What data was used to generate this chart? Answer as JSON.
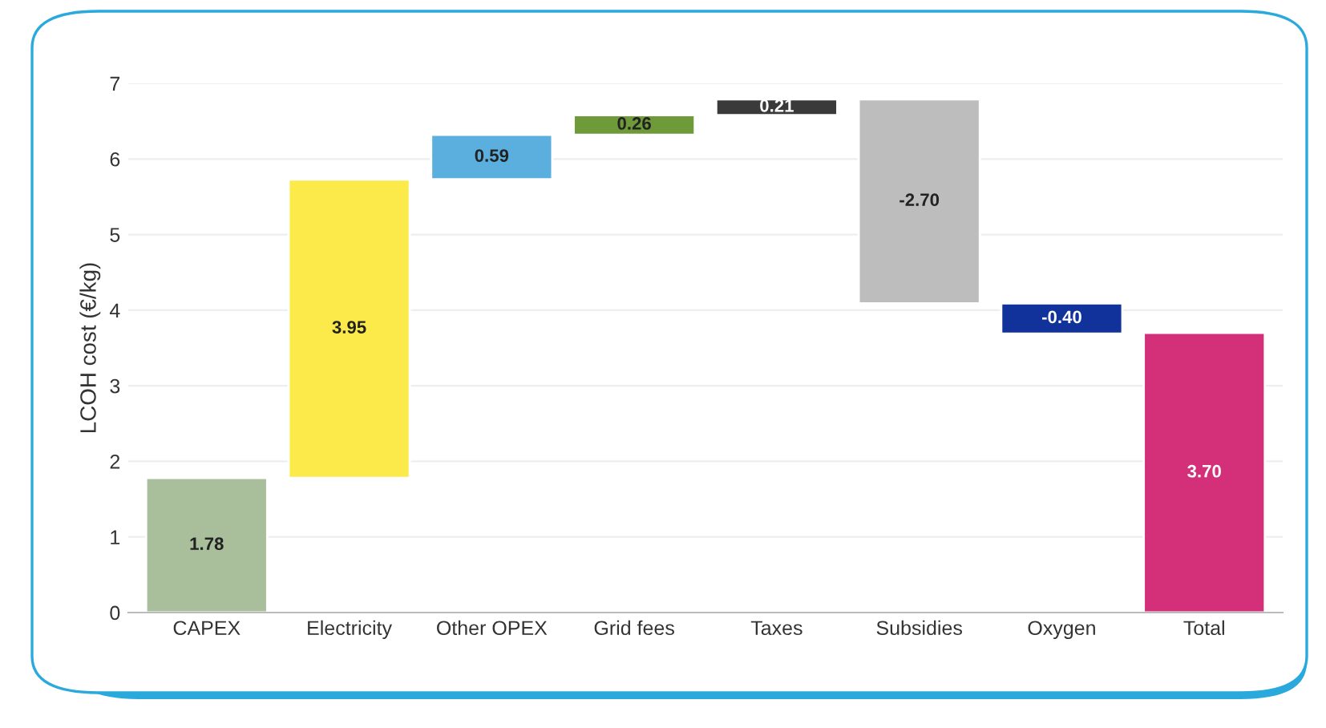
{
  "chart_data": {
    "type": "bar",
    "ylabel": "LCOH cost (€/kg)",
    "categories": [
      "CAPEX",
      "Electricity",
      "Other OPEX",
      "Grid fees",
      "Taxes",
      "Subsidies",
      "Oxygen",
      "Total"
    ],
    "values": [
      1.78,
      3.95,
      0.59,
      0.26,
      0.21,
      -2.7,
      -0.4,
      3.7
    ],
    "base": [
      0,
      1.78,
      5.73,
      6.32,
      6.58,
      6.79,
      4.09,
      0
    ],
    "colors": [
      "#a9bf9c",
      "#fbea4a",
      "#5aafdf",
      "#6f9a3a",
      "#3a3a3a",
      "#bdbdbd",
      "#10329a",
      "#d4307a"
    ],
    "value_labels": [
      "1.78",
      "3.95",
      "0.59",
      "0.26",
      "0.21",
      "-2.70",
      "-0.40",
      "3.70"
    ],
    "ylim": [
      0,
      7
    ],
    "yticks": [
      0,
      1,
      2,
      3,
      4,
      5,
      6,
      7
    ],
    "grid": "y",
    "legend": false
  }
}
